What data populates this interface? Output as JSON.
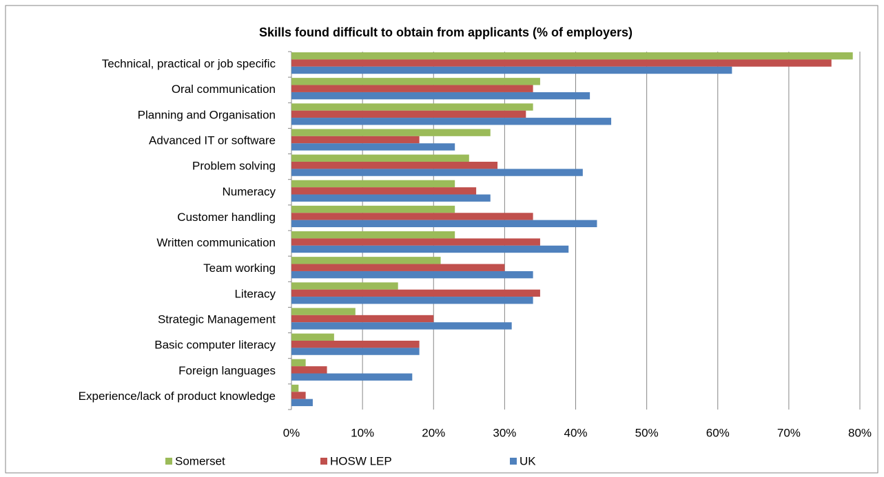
{
  "chart_data": {
    "type": "bar",
    "title": "Skills found difficult to obtain from applicants (% of employers)",
    "categories": [
      "Technical, practical or job specific",
      "Oral communication",
      "Planning and Organisation",
      "Advanced IT or software",
      "Problem solving",
      "Numeracy",
      "Customer handling",
      "Written communication",
      "Team working",
      "Literacy",
      "Strategic Management",
      "Basic computer literacy",
      "Foreign languages",
      "Experience/lack of product knowledge"
    ],
    "series": [
      {
        "name": "Somerset",
        "color": "#9bbb59",
        "values": [
          79,
          35,
          34,
          28,
          25,
          23,
          23,
          23,
          21,
          15,
          9,
          6,
          2,
          1
        ]
      },
      {
        "name": "HOSW LEP",
        "color": "#c0504d",
        "values": [
          76,
          34,
          33,
          18,
          29,
          26,
          34,
          35,
          30,
          35,
          20,
          18,
          5,
          2
        ]
      },
      {
        "name": "UK",
        "color": "#4f81bd",
        "values": [
          62,
          42,
          45,
          23,
          41,
          28,
          43,
          39,
          34,
          34,
          31,
          18,
          17,
          3
        ]
      }
    ],
    "xlim": [
      0,
      80
    ],
    "xticks": [
      {
        "value": 0,
        "label": "0%"
      },
      {
        "value": 10,
        "label": "10%"
      },
      {
        "value": 20,
        "label": "20%"
      },
      {
        "value": 30,
        "label": "30%"
      },
      {
        "value": 40,
        "label": "40%"
      },
      {
        "value": 50,
        "label": "50%"
      },
      {
        "value": 60,
        "label": "60%"
      },
      {
        "value": 70,
        "label": "70%"
      },
      {
        "value": 80,
        "label": "80%"
      }
    ],
    "grid": true,
    "legend": "bottom"
  }
}
